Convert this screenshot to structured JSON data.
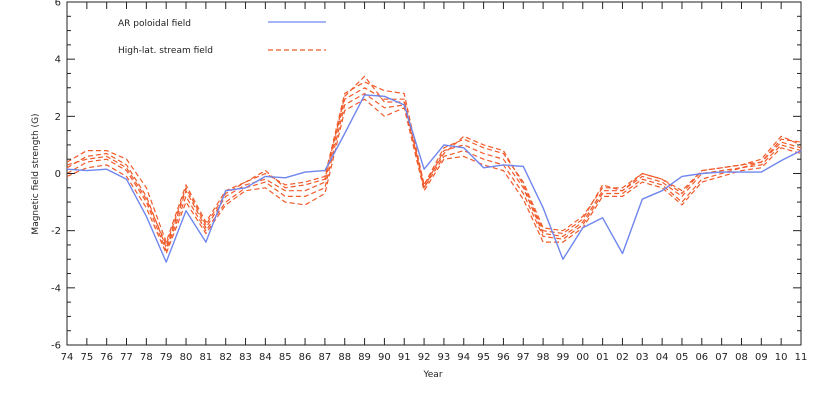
{
  "chart_data": {
    "type": "line",
    "xlabel": "Year",
    "ylabel": "Magnetic field strength (G)",
    "ylim": [
      -6,
      6
    ],
    "yticks": [
      -6,
      -4,
      -2,
      0,
      2,
      4,
      6
    ],
    "x": [
      "74",
      "75",
      "76",
      "77",
      "78",
      "79",
      "80",
      "81",
      "82",
      "83",
      "84",
      "85",
      "86",
      "87",
      "88",
      "89",
      "90",
      "91",
      "92",
      "93",
      "94",
      "95",
      "96",
      "97",
      "98",
      "99",
      "00",
      "01",
      "02",
      "03",
      "04",
      "05",
      "06",
      "07",
      "08",
      "09",
      "10",
      "11"
    ],
    "legend": [
      {
        "label": "AR poloidal field",
        "style": "solid",
        "color": "#6f86ee"
      },
      {
        "label": "High-lat. stream field",
        "style": "dashed",
        "color": "#f05a2a"
      }
    ],
    "series": [
      {
        "name": "AR poloidal field",
        "style": "solid",
        "color": "#6f86ee",
        "values": [
          0.15,
          0.1,
          0.15,
          -0.2,
          -1.5,
          -3.1,
          -1.3,
          -2.4,
          -0.6,
          -0.5,
          -0.1,
          -0.15,
          0.05,
          0.1,
          1.4,
          2.75,
          2.7,
          2.4,
          0.15,
          1.0,
          0.9,
          0.2,
          0.3,
          0.25,
          -1.2,
          -3.0,
          -1.9,
          -1.55,
          -2.8,
          -0.9,
          -0.6,
          -0.1,
          0.0,
          0.05,
          0.05,
          0.05,
          0.45,
          0.8
        ]
      },
      {
        "name": "",
        "style": "dashed",
        "color": "#f05a2a",
        "values": [
          0.4,
          0.8,
          0.8,
          0.5,
          -0.5,
          -2.4,
          -0.4,
          -1.7,
          -0.6,
          -0.3,
          0.0,
          -0.4,
          -0.3,
          -0.1,
          2.8,
          3.2,
          2.9,
          2.8,
          -0.4,
          0.9,
          1.2,
          0.9,
          0.7,
          -0.3,
          -1.9,
          -2.0,
          -1.5,
          -0.5,
          -0.5,
          0.0,
          -0.2,
          -0.6,
          0.1,
          0.2,
          0.3,
          0.5,
          1.3,
          1.0
        ]
      },
      {
        "name": "",
        "style": "dashed",
        "color": "#f05a2a",
        "values": [
          0.2,
          0.6,
          0.7,
          0.3,
          -0.8,
          -2.6,
          -0.6,
          -1.9,
          -0.8,
          -0.4,
          -0.2,
          -0.6,
          -0.6,
          -0.3,
          2.6,
          3.0,
          2.6,
          2.6,
          -0.5,
          0.8,
          1.0,
          0.7,
          0.5,
          -0.5,
          -2.1,
          -2.2,
          -1.7,
          -0.6,
          -0.6,
          -0.1,
          -0.3,
          -0.8,
          0.0,
          0.1,
          0.2,
          0.4,
          1.1,
          0.9
        ]
      },
      {
        "name": "",
        "style": "dashed",
        "color": "#f05a2a",
        "values": [
          0.0,
          0.4,
          0.5,
          0.1,
          -1.0,
          -2.7,
          -0.8,
          -2.0,
          -1.0,
          -0.5,
          -0.3,
          -0.8,
          -0.8,
          -0.5,
          2.4,
          2.8,
          2.3,
          2.4,
          -0.5,
          0.6,
          0.8,
          0.5,
          0.3,
          -0.7,
          -2.2,
          -2.3,
          -1.8,
          -0.7,
          -0.7,
          -0.2,
          -0.4,
          -1.0,
          -0.2,
          0.0,
          0.2,
          0.3,
          1.0,
          0.8
        ]
      },
      {
        "name": "",
        "style": "dashed",
        "color": "#f05a2a",
        "values": [
          -0.1,
          0.2,
          0.3,
          -0.1,
          -1.2,
          -2.8,
          -1.0,
          -2.1,
          -1.1,
          -0.6,
          -0.5,
          -1.0,
          -1.1,
          -0.7,
          2.2,
          2.6,
          2.0,
          2.3,
          -0.6,
          0.5,
          0.6,
          0.3,
          0.1,
          -0.9,
          -2.4,
          -2.4,
          -1.9,
          -0.8,
          -0.8,
          -0.3,
          -0.5,
          -1.1,
          -0.3,
          -0.1,
          0.1,
          0.2,
          0.9,
          0.7
        ]
      },
      {
        "name": "",
        "style": "dashed",
        "color": "#f05a2a",
        "values": [
          0.3,
          0.5,
          0.6,
          0.2,
          -0.9,
          -2.5,
          -0.5,
          -1.8,
          -0.7,
          -0.3,
          0.1,
          -0.5,
          -0.4,
          -0.2,
          2.7,
          3.4,
          2.5,
          2.5,
          -0.4,
          0.7,
          1.3,
          1.0,
          0.8,
          -0.4,
          -2.0,
          -2.1,
          -1.6,
          -0.4,
          -0.6,
          0.0,
          -0.2,
          -0.7,
          0.1,
          0.2,
          0.3,
          0.4,
          1.2,
          1.1
        ]
      }
    ]
  }
}
